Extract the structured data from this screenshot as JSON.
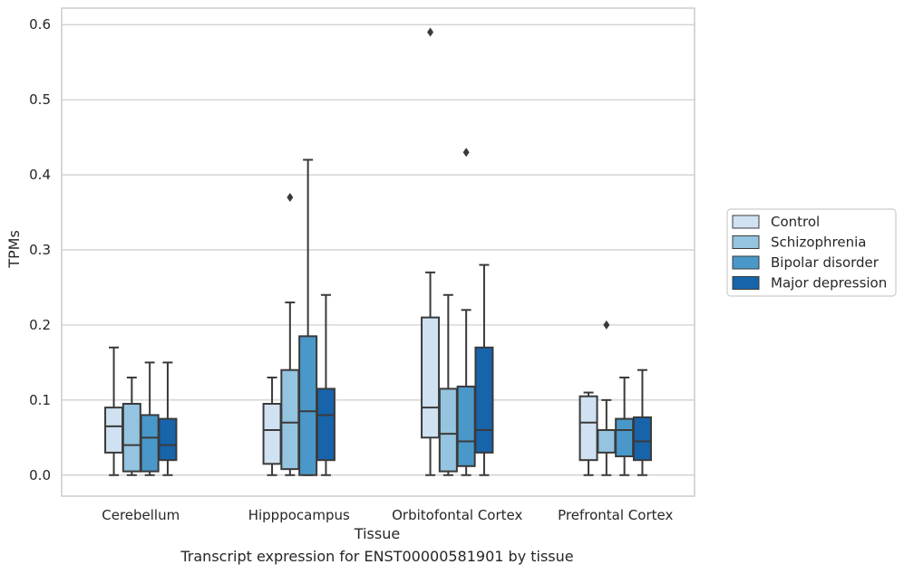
{
  "caption": "Transcript expression for ENST00000581901 by tissue",
  "chart_data": {
    "type": "boxplot",
    "xlabel": "Tissue",
    "ylabel": "TPMs",
    "ylim": [
      -0.028,
      0.622
    ],
    "yticks": [
      0.0,
      0.1,
      0.2,
      0.3,
      0.4,
      0.5,
      0.6
    ],
    "ytick_labels": [
      "0.0",
      "0.1",
      "0.2",
      "0.3",
      "0.4",
      "0.5",
      "0.6"
    ],
    "grid": "horizontal",
    "legend_position": "right",
    "categories": [
      "Cerebellum",
      "Hipppocampus",
      "Orbitofontal Cortex",
      "Prefrontal Cortex"
    ],
    "series": [
      {
        "name": "Control",
        "color": "#d0e1f2",
        "boxes": [
          {
            "whisker_low": 0.0,
            "q1": 0.03,
            "median": 0.065,
            "q3": 0.09,
            "whisker_high": 0.17,
            "outliers": []
          },
          {
            "whisker_low": 0.0,
            "q1": 0.015,
            "median": 0.06,
            "q3": 0.095,
            "whisker_high": 0.13,
            "outliers": []
          },
          {
            "whisker_low": 0.0,
            "q1": 0.05,
            "median": 0.09,
            "q3": 0.21,
            "whisker_high": 0.27,
            "outliers": [
              0.59
            ]
          },
          {
            "whisker_low": 0.0,
            "q1": 0.02,
            "median": 0.07,
            "q3": 0.105,
            "whisker_high": 0.11,
            "outliers": []
          }
        ]
      },
      {
        "name": "Schizophrenia",
        "color": "#94c4df",
        "boxes": [
          {
            "whisker_low": 0.0,
            "q1": 0.005,
            "median": 0.04,
            "q3": 0.095,
            "whisker_high": 0.13,
            "outliers": []
          },
          {
            "whisker_low": 0.0,
            "q1": 0.008,
            "median": 0.07,
            "q3": 0.14,
            "whisker_high": 0.23,
            "outliers": [
              0.37
            ]
          },
          {
            "whisker_low": 0.0,
            "q1": 0.005,
            "median": 0.055,
            "q3": 0.115,
            "whisker_high": 0.24,
            "outliers": []
          },
          {
            "whisker_low": 0.0,
            "q1": 0.03,
            "median": 0.06,
            "q3": 0.06,
            "whisker_high": 0.1,
            "outliers": [
              0.2
            ]
          }
        ]
      },
      {
        "name": "Bipolar disorder",
        "color": "#4a98c9",
        "boxes": [
          {
            "whisker_low": 0.0,
            "q1": 0.005,
            "median": 0.05,
            "q3": 0.08,
            "whisker_high": 0.15,
            "outliers": []
          },
          {
            "whisker_low": 0.0,
            "q1": 0.0,
            "median": 0.085,
            "q3": 0.185,
            "whisker_high": 0.42,
            "outliers": []
          },
          {
            "whisker_low": 0.0,
            "q1": 0.012,
            "median": 0.045,
            "q3": 0.118,
            "whisker_high": 0.22,
            "outliers": [
              0.43
            ]
          },
          {
            "whisker_low": 0.0,
            "q1": 0.025,
            "median": 0.06,
            "q3": 0.075,
            "whisker_high": 0.13,
            "outliers": []
          }
        ]
      },
      {
        "name": "Major depression",
        "color": "#1764ab",
        "boxes": [
          {
            "whisker_low": 0.0,
            "q1": 0.02,
            "median": 0.04,
            "q3": 0.075,
            "whisker_high": 0.15,
            "outliers": []
          },
          {
            "whisker_low": 0.0,
            "q1": 0.02,
            "median": 0.08,
            "q3": 0.115,
            "whisker_high": 0.24,
            "outliers": []
          },
          {
            "whisker_low": 0.0,
            "q1": 0.03,
            "median": 0.06,
            "q3": 0.17,
            "whisker_high": 0.28,
            "outliers": []
          },
          {
            "whisker_low": 0.0,
            "q1": 0.02,
            "median": 0.045,
            "q3": 0.077,
            "whisker_high": 0.14,
            "outliers": []
          }
        ]
      }
    ]
  }
}
